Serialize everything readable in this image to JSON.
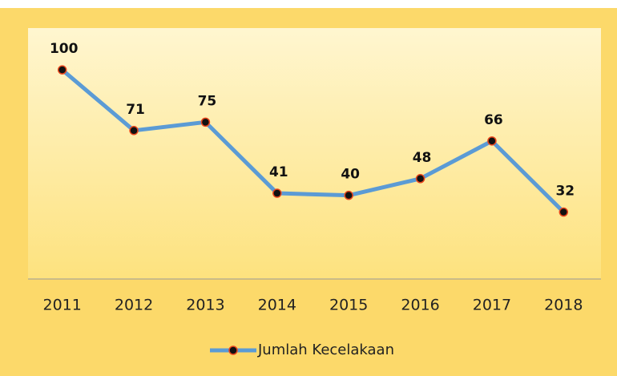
{
  "chart_data": {
    "type": "line",
    "categories": [
      "2011",
      "2012",
      "2013",
      "2014",
      "2015",
      "2016",
      "2017",
      "2018"
    ],
    "series": [
      {
        "name": "Jumlah Kecelakaan",
        "color": "#5b9bd5",
        "values": [
          100,
          71,
          75,
          41,
          40,
          48,
          66,
          32
        ]
      }
    ],
    "ylim": [
      0,
      120
    ],
    "legend": "bottom"
  }
}
